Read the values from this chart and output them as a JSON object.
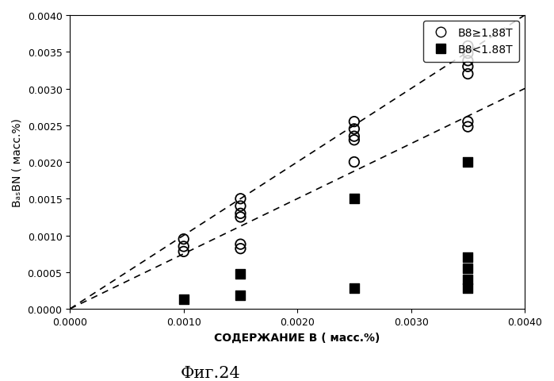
{
  "title": "Фиг.24",
  "xlabel": "СОДЕРЖАНИЕ В ( масс.%)",
  "ylabel": "BₐₛBN ( масс.%)",
  "xlim": [
    0.0,
    0.004
  ],
  "ylim": [
    0.0,
    0.004
  ],
  "xticks": [
    0.0,
    0.001,
    0.002,
    0.003,
    0.004
  ],
  "yticks": [
    0.0,
    0.0005,
    0.001,
    0.0015,
    0.002,
    0.0025,
    0.003,
    0.0035,
    0.004
  ],
  "dashed_line1_x": [
    0.0,
    0.004
  ],
  "dashed_line1_y": [
    0.0,
    0.004
  ],
  "dashed_line2_x": [
    0.0,
    0.004
  ],
  "dashed_line2_y": [
    0.0,
    0.003
  ],
  "open_circles_x": [
    0.001,
    0.001,
    0.001,
    0.0015,
    0.0015,
    0.0015,
    0.0015,
    0.0015,
    0.0015,
    0.0025,
    0.0025,
    0.0025,
    0.0025,
    0.0025,
    0.0035,
    0.0035,
    0.0035,
    0.0035,
    0.0035,
    0.0035,
    0.0035
  ],
  "open_circles_y": [
    0.00095,
    0.00085,
    0.00078,
    0.0015,
    0.0014,
    0.0013,
    0.00125,
    0.00088,
    0.00082,
    0.00255,
    0.00245,
    0.00235,
    0.0023,
    0.002,
    0.00358,
    0.00348,
    0.00338,
    0.0033,
    0.0032,
    0.00255,
    0.00248
  ],
  "filled_squares_x": [
    0.001,
    0.0015,
    0.0015,
    0.0025,
    0.0025,
    0.0035,
    0.0035,
    0.0035,
    0.0035,
    0.0035
  ],
  "filled_squares_y": [
    0.00013,
    0.00048,
    0.00018,
    0.0015,
    0.00028,
    0.002,
    0.0007,
    0.00055,
    0.0004,
    0.00028
  ],
  "legend_circle_label": "B8≥1.88T",
  "legend_square_label": "B8<1.88T",
  "marker_size_circle": 9,
  "marker_size_square": 8,
  "background_color": "#ffffff",
  "line_color": "#000000"
}
